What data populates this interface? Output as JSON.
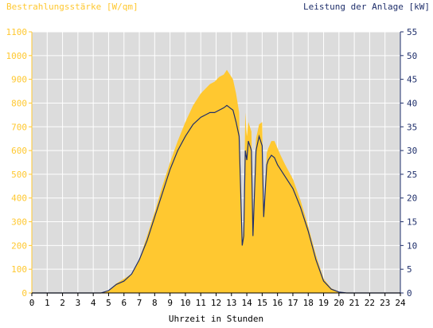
{
  "chart_data": {
    "type": "area",
    "left_axis_title": "Bestrahlungsstärke [W/qm]",
    "right_axis_title": "Leistung der Anlage [kW]",
    "xlabel": "Uhrzeit in Stunden",
    "x_ticks": [
      "0",
      "1",
      "2",
      "3",
      "4",
      "5",
      "6",
      "7",
      "8",
      "9",
      "10",
      "11",
      "12",
      "13",
      "14",
      "15",
      "16",
      "17",
      "18",
      "19",
      "20",
      "21",
      "22",
      "23",
      "24"
    ],
    "y_left_ticks": [
      "0",
      "100",
      "200",
      "300",
      "400",
      "500",
      "600",
      "700",
      "800",
      "900",
      "1000",
      "1100"
    ],
    "y_right_ticks": [
      "0",
      "5",
      "10",
      "15",
      "20",
      "25",
      "30",
      "35",
      "40",
      "45",
      "50",
      "55"
    ],
    "xlim": [
      0,
      24
    ],
    "ylim_left": [
      0,
      1100
    ],
    "ylim_right": [
      0,
      55
    ],
    "grid": true,
    "colors": {
      "irradiance": "#ffc830",
      "power": "#1f2f6b",
      "background": "#dcdcdc",
      "grid": "#ffffff",
      "left_axis": "#ffc830",
      "right_axis": "#1f2f6b"
    },
    "series": [
      {
        "name": "Bestrahlungsstärke [W/qm]",
        "axis": "left",
        "style": "area",
        "x": [
          0,
          4.5,
          5,
          5.5,
          6,
          6.5,
          7,
          7.5,
          8,
          8.5,
          9,
          9.5,
          10,
          10.5,
          11,
          11.3,
          11.6,
          11.9,
          12.2,
          12.5,
          12.7,
          12.9,
          13.1,
          13.3,
          13.5,
          13.7,
          13.8,
          13.9,
          14.0,
          14.1,
          14.3,
          14.4,
          14.6,
          14.8,
          15.0,
          15.1,
          15.3,
          15.4,
          15.6,
          15.8,
          16.0,
          16.2,
          16.5,
          17,
          17.5,
          18,
          18.5,
          19,
          19.5,
          20,
          20.5,
          21,
          24
        ],
        "y": [
          0,
          0,
          10,
          40,
          60,
          80,
          140,
          240,
          340,
          450,
          550,
          640,
          720,
          790,
          840,
          860,
          880,
          890,
          910,
          920,
          940,
          920,
          900,
          840,
          760,
          200,
          300,
          760,
          660,
          720,
          680,
          300,
          650,
          710,
          720,
          330,
          590,
          610,
          640,
          640,
          610,
          580,
          540,
          480,
          390,
          280,
          160,
          60,
          20,
          5,
          0,
          0,
          0
        ]
      },
      {
        "name": "Leistung der Anlage [kW]",
        "axis": "right",
        "style": "line",
        "x": [
          0,
          4.5,
          5,
          5.5,
          6,
          6.5,
          7,
          7.5,
          8,
          8.5,
          9,
          9.5,
          10,
          10.5,
          11,
          11.3,
          11.6,
          11.9,
          12.2,
          12.5,
          12.7,
          12.9,
          13.1,
          13.3,
          13.5,
          13.7,
          13.8,
          13.9,
          14.0,
          14.1,
          14.3,
          14.4,
          14.6,
          14.8,
          15.0,
          15.1,
          15.3,
          15.4,
          15.6,
          15.8,
          16.0,
          16.2,
          16.5,
          17,
          17.5,
          18,
          18.5,
          19,
          19.5,
          20,
          20.5,
          21,
          24
        ],
        "y": [
          0,
          0,
          0.5,
          1.8,
          2.5,
          4,
          7,
          11,
          16,
          21,
          26,
          30,
          33,
          35.5,
          37,
          37.5,
          38,
          38,
          38.5,
          39,
          39.5,
          39,
          38.5,
          36,
          33,
          10,
          12,
          30,
          28,
          32,
          30,
          12,
          30,
          33,
          31,
          16,
          27,
          28,
          29,
          28.5,
          27,
          26,
          24.5,
          22,
          18,
          13,
          7,
          2.5,
          0.8,
          0.2,
          0,
          0,
          0
        ]
      }
    ]
  }
}
